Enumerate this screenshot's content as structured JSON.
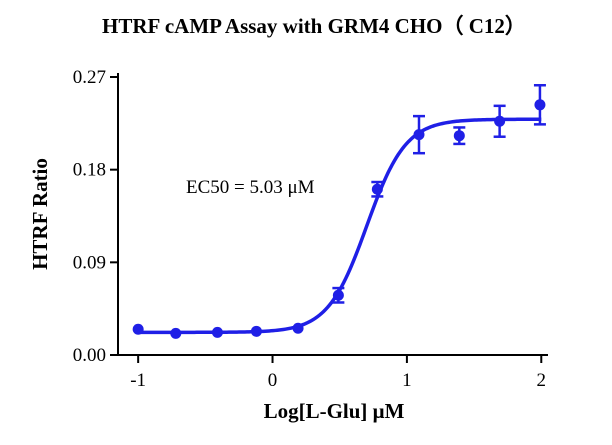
{
  "chart_data": {
    "type": "scatter",
    "title": "HTRF cAMP Assay with GRM4 CHO（ C12）",
    "xlabel": "Log[L-Glu] μM",
    "ylabel": "HTRF Ratio",
    "xlim": [
      -1.15,
      2.05
    ],
    "ylim": [
      0.0,
      0.27
    ],
    "xticks": [
      "-1",
      "0",
      "1",
      "2"
    ],
    "xtick_values": [
      -1,
      0,
      1,
      2
    ],
    "yticks": [
      "0.00",
      "0.09",
      "0.18",
      "0.27"
    ],
    "ytick_values": [
      0.0,
      0.09,
      0.18,
      0.27
    ],
    "series_color": "#1f1fe6",
    "annotation": "EC50 = 5.03 μM",
    "points": [
      {
        "x": -1.0,
        "y": 0.025,
        "err": 0.002
      },
      {
        "x": -0.72,
        "y": 0.021,
        "err": 0.001
      },
      {
        "x": -0.41,
        "y": 0.022,
        "err": 0.001
      },
      {
        "x": -0.12,
        "y": 0.023,
        "err": 0.001
      },
      {
        "x": 0.19,
        "y": 0.026,
        "err": 0.001
      },
      {
        "x": 0.49,
        "y": 0.058,
        "err": 0.007
      },
      {
        "x": 0.78,
        "y": 0.161,
        "err": 0.007
      },
      {
        "x": 1.09,
        "y": 0.214,
        "err": 0.018
      },
      {
        "x": 1.39,
        "y": 0.213,
        "err": 0.008
      },
      {
        "x": 1.69,
        "y": 0.227,
        "err": 0.015
      },
      {
        "x": 1.99,
        "y": 0.243,
        "err": 0.019
      }
    ],
    "fit": {
      "bottom": 0.022,
      "top": 0.229,
      "logEC50": 0.7016,
      "hill": 3.0
    }
  }
}
